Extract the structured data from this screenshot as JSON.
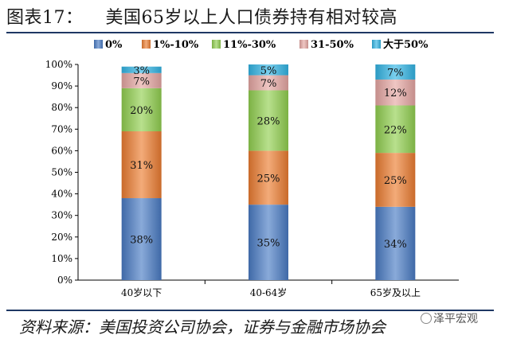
{
  "title": {
    "prefix": "图表17：",
    "text": "美国65岁以上人口债券持有相对较高"
  },
  "source": "资料来源：美国投资公司协会，证券与金融市场协会",
  "watermark": "泽平宏观",
  "chart_data": {
    "type": "bar",
    "stacked": true,
    "categories": [
      "40岁以下",
      "40-64岁",
      "65岁及以上"
    ],
    "series": [
      {
        "name": "0%",
        "values": [
          38,
          35,
          34
        ],
        "labels": [
          "38%",
          "35%",
          "34%"
        ],
        "color": "#4a7cc4"
      },
      {
        "name": "1%-10%",
        "values": [
          31,
          25,
          25
        ],
        "labels": [
          "31%",
          "25%",
          "25%"
        ],
        "color": "#ed7d31"
      },
      {
        "name": "11%-30%",
        "values": [
          20,
          28,
          22
        ],
        "labels": [
          "20%",
          "28%",
          "22%"
        ],
        "color": "#92d050"
      },
      {
        "name": "31-50%",
        "values": [
          7,
          7,
          12
        ],
        "labels": [
          "7%",
          "7%",
          "12%"
        ],
        "color": "#e6a7a3"
      },
      {
        "name": "大于50%",
        "values": [
          3,
          5,
          7
        ],
        "labels": [
          "3%",
          "5%",
          "7%"
        ],
        "color": "#33b5e5"
      }
    ],
    "y_ticks": [
      "0%",
      "10%",
      "20%",
      "30%",
      "40%",
      "50%",
      "60%",
      "70%",
      "80%",
      "90%",
      "100%"
    ],
    "ylim": [
      0,
      100
    ],
    "legend_position": "top",
    "grid": false
  }
}
